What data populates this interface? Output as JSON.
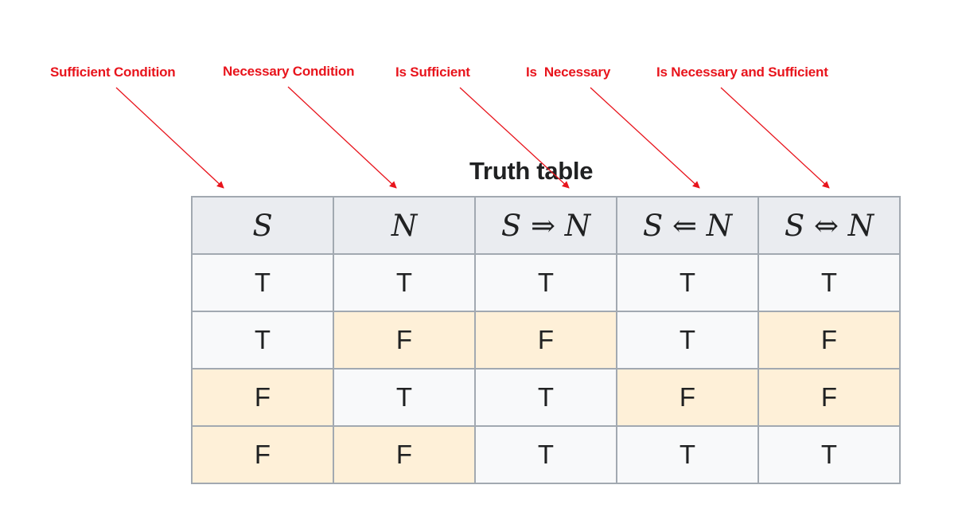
{
  "annotations": [
    {
      "id": "sufficient-condition",
      "text": "Sufficient Condition"
    },
    {
      "id": "necessary-condition",
      "text": "Necessary Condition"
    },
    {
      "id": "is-sufficient",
      "text": "Is Sufficient"
    },
    {
      "id": "is-necessary",
      "text": "Is  Necessary"
    },
    {
      "id": "is-necessary-and-sufficient",
      "text": "Is Necessary and Sufficient"
    }
  ],
  "table": {
    "title": "Truth table",
    "headers": [
      "S",
      "N",
      "S ⇒ N",
      "S ⇐ N",
      "S ⇔ N"
    ],
    "rows": [
      [
        "T",
        "T",
        "T",
        "T",
        "T"
      ],
      [
        "T",
        "F",
        "F",
        "T",
        "F"
      ],
      [
        "F",
        "T",
        "T",
        "F",
        "F"
      ],
      [
        "F",
        "F",
        "T",
        "T",
        "T"
      ]
    ]
  },
  "colors": {
    "annotation": "#e8141c",
    "header_bg": "#eaecf0",
    "true_cell_bg": "#f8f9fa",
    "false_cell_bg": "#fef0d8",
    "border": "#a2a9b1",
    "text": "#202122"
  }
}
